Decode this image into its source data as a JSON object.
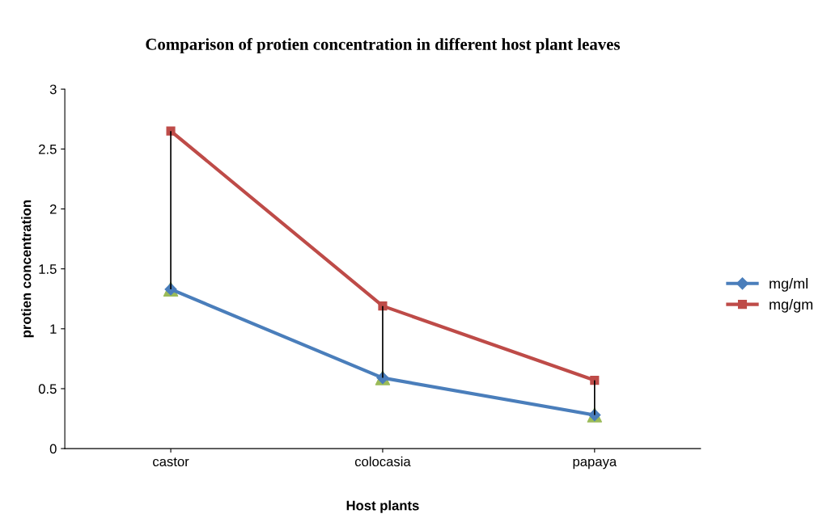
{
  "chart_data": {
    "type": "line",
    "title": "Comparison of protien concentration in different host plant leaves",
    "xlabel": "Host plants",
    "ylabel": "protien concentration",
    "categories": [
      "castor",
      "colocasia",
      "papaya"
    ],
    "series": [
      {
        "name": "mg/ml",
        "color": "#4a7ebb",
        "marker": "diamond",
        "values": [
          1.33,
          0.59,
          0.28
        ],
        "errors": [
          [
            1.33,
            2.65
          ],
          [
            0.59,
            1.19
          ],
          [
            0.28,
            0.57
          ]
        ]
      },
      {
        "name": "mg/gm",
        "color": "#be4b48",
        "marker": "square",
        "values": [
          2.65,
          1.19,
          0.57
        ]
      },
      {
        "type": "scatter",
        "color": "#9bbb59",
        "marker": "triangle",
        "values": [
          1.33,
          0.59,
          0.28
        ]
      }
    ],
    "ylim": [
      0,
      3
    ],
    "yticks": [
      0,
      0.5,
      1,
      1.5,
      2,
      2.5,
      3
    ],
    "grid": false,
    "legend": "right"
  }
}
